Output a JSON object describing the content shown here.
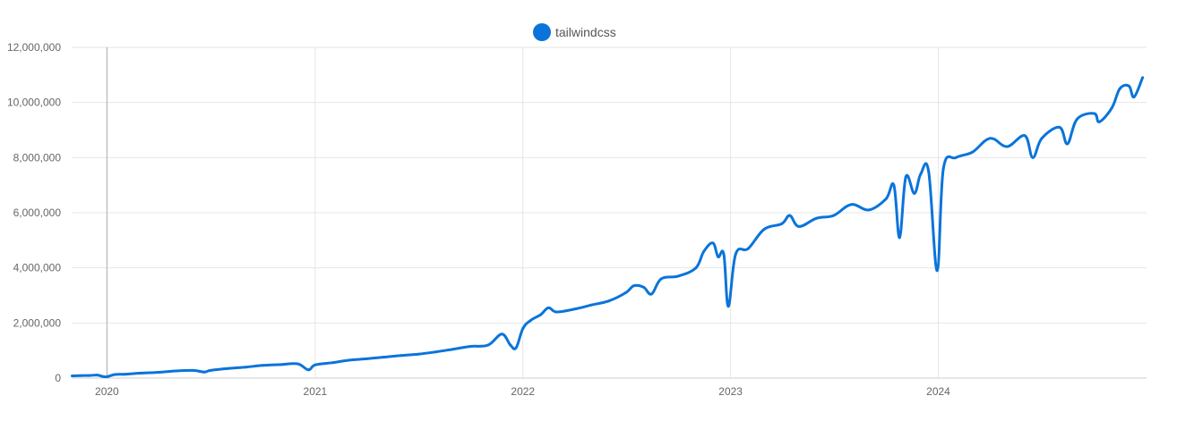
{
  "chart_data": {
    "type": "line",
    "legend": {
      "position": "top-center",
      "entries": [
        "tailwindcss"
      ]
    },
    "series": [
      {
        "name": "tailwindcss",
        "color": "#0a74da",
        "points": [
          [
            "2019-11-01",
            80000
          ],
          [
            "2019-11-15",
            90000
          ],
          [
            "2019-12-01",
            95000
          ],
          [
            "2019-12-15",
            110000
          ],
          [
            "2019-12-24",
            60000
          ],
          [
            "2020-01-01",
            50000
          ],
          [
            "2020-01-15",
            130000
          ],
          [
            "2020-02-01",
            140000
          ],
          [
            "2020-03-01",
            180000
          ],
          [
            "2020-04-01",
            210000
          ],
          [
            "2020-05-01",
            260000
          ],
          [
            "2020-06-01",
            280000
          ],
          [
            "2020-06-20",
            220000
          ],
          [
            "2020-07-01",
            280000
          ],
          [
            "2020-08-01",
            350000
          ],
          [
            "2020-09-01",
            400000
          ],
          [
            "2020-10-01",
            460000
          ],
          [
            "2020-11-01",
            490000
          ],
          [
            "2020-12-01",
            520000
          ],
          [
            "2020-12-20",
            300000
          ],
          [
            "2021-01-01",
            480000
          ],
          [
            "2021-02-01",
            560000
          ],
          [
            "2021-03-01",
            650000
          ],
          [
            "2021-04-01",
            700000
          ],
          [
            "2021-05-01",
            760000
          ],
          [
            "2021-06-01",
            820000
          ],
          [
            "2021-07-01",
            870000
          ],
          [
            "2021-08-01",
            950000
          ],
          [
            "2021-09-01",
            1050000
          ],
          [
            "2021-10-01",
            1150000
          ],
          [
            "2021-11-01",
            1200000
          ],
          [
            "2021-11-25",
            1600000
          ],
          [
            "2021-12-10",
            1200000
          ],
          [
            "2021-12-20",
            1100000
          ],
          [
            "2022-01-01",
            1800000
          ],
          [
            "2022-01-15",
            2100000
          ],
          [
            "2022-02-01",
            2300000
          ],
          [
            "2022-02-15",
            2550000
          ],
          [
            "2022-03-01",
            2400000
          ],
          [
            "2022-04-01",
            2500000
          ],
          [
            "2022-05-01",
            2650000
          ],
          [
            "2022-06-01",
            2800000
          ],
          [
            "2022-07-01",
            3100000
          ],
          [
            "2022-07-15",
            3350000
          ],
          [
            "2022-08-01",
            3300000
          ],
          [
            "2022-08-15",
            3050000
          ],
          [
            "2022-09-01",
            3600000
          ],
          [
            "2022-10-01",
            3700000
          ],
          [
            "2022-11-01",
            4000000
          ],
          [
            "2022-11-15",
            4600000
          ],
          [
            "2022-12-01",
            4900000
          ],
          [
            "2022-12-10",
            4400000
          ],
          [
            "2022-12-20",
            4500000
          ],
          [
            "2022-12-28",
            2600000
          ],
          [
            "2023-01-10",
            4500000
          ],
          [
            "2023-02-01",
            4700000
          ],
          [
            "2023-03-01",
            5400000
          ],
          [
            "2023-04-01",
            5600000
          ],
          [
            "2023-04-15",
            5900000
          ],
          [
            "2023-05-01",
            5500000
          ],
          [
            "2023-06-01",
            5800000
          ],
          [
            "2023-07-01",
            5900000
          ],
          [
            "2023-08-01",
            6300000
          ],
          [
            "2023-09-01",
            6100000
          ],
          [
            "2023-10-01",
            6500000
          ],
          [
            "2023-10-15",
            7000000
          ],
          [
            "2023-10-25",
            5100000
          ],
          [
            "2023-11-05",
            7300000
          ],
          [
            "2023-11-20",
            6700000
          ],
          [
            "2023-12-01",
            7400000
          ],
          [
            "2023-12-15",
            7500000
          ],
          [
            "2023-12-30",
            3900000
          ],
          [
            "2024-01-10",
            7600000
          ],
          [
            "2024-02-01",
            8000000
          ],
          [
            "2024-03-01",
            8200000
          ],
          [
            "2024-04-01",
            8700000
          ],
          [
            "2024-05-01",
            8400000
          ],
          [
            "2024-06-01",
            8800000
          ],
          [
            "2024-06-15",
            8000000
          ],
          [
            "2024-07-01",
            8700000
          ],
          [
            "2024-08-01",
            9100000
          ],
          [
            "2024-08-15",
            8500000
          ],
          [
            "2024-09-01",
            9400000
          ],
          [
            "2024-10-01",
            9600000
          ],
          [
            "2024-10-10",
            9300000
          ],
          [
            "2024-11-01",
            9800000
          ],
          [
            "2024-11-15",
            10500000
          ],
          [
            "2024-12-01",
            10600000
          ],
          [
            "2024-12-10",
            10200000
          ],
          [
            "2024-12-25",
            10900000
          ]
        ]
      }
    ],
    "x_axis": {
      "type": "date",
      "range": [
        "2019-10-31",
        "2025-01-01"
      ],
      "ticks": [
        {
          "date": "2020-01-01",
          "label": "2020"
        },
        {
          "date": "2021-01-01",
          "label": "2021"
        },
        {
          "date": "2022-01-01",
          "label": "2022"
        },
        {
          "date": "2023-01-01",
          "label": "2023"
        },
        {
          "date": "2024-01-01",
          "label": "2024"
        }
      ]
    },
    "y_axis": {
      "range": [
        0,
        12000000
      ],
      "ticks": [
        {
          "value": 0,
          "label": "0"
        },
        {
          "value": 2000000,
          "label": "2,000,000"
        },
        {
          "value": 4000000,
          "label": "4,000,000"
        },
        {
          "value": 6000000,
          "label": "6,000,000"
        },
        {
          "value": 8000000,
          "label": "8,000,000"
        },
        {
          "value": 10000000,
          "label": "10,000,000"
        },
        {
          "value": 12000000,
          "label": "12,000,000"
        }
      ]
    },
    "grid": true,
    "highlight_line_date": "2020-01-01"
  }
}
